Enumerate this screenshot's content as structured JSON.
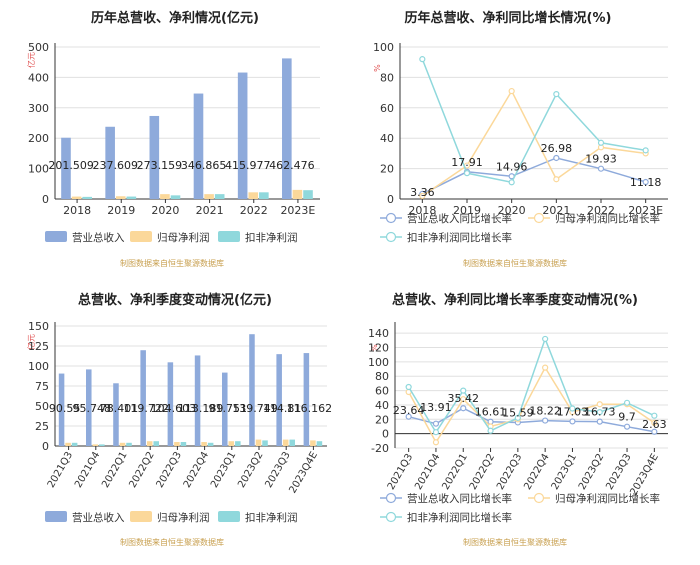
{
  "colors": {
    "revenue": "#8eaadb",
    "profit": "#fbd89a",
    "deducted": "#8fd8dc",
    "grid": "#e0e0e0",
    "axis": "#333333",
    "title": "#222222",
    "source": "#c8a050",
    "unit": "#e05050"
  },
  "source_note": "制图数据来自恒生聚源数据库",
  "chart_data": [
    {
      "type": "bar",
      "title": "历年总营收、净利情况(亿元)",
      "ylabel": "亿元",
      "ylim": [
        0,
        500
      ],
      "yticks": [
        "0",
        "100",
        "200",
        "300",
        "400",
        "500"
      ],
      "grid": true,
      "legend_position": "bottom",
      "categories": [
        "2018",
        "2019",
        "2020",
        "2021",
        "2022",
        "2023E"
      ],
      "series": [
        {
          "name": "营业总收入",
          "values": [
            201.509,
            237.609,
            273.159,
            346.865,
            415.977,
            462.476
          ]
        },
        {
          "name": "归母净利润",
          "values": [
            8,
            9,
            16,
            16,
            22,
            30
          ]
        },
        {
          "name": "扣非净利润",
          "values": [
            7,
            8,
            12,
            16,
            22,
            29
          ]
        }
      ],
      "data_labels": [
        "201.509",
        "237.609",
        "273.159",
        "346.865",
        "415.977",
        "462.476"
      ]
    },
    {
      "type": "line",
      "title": "历年总营收、净利同比增长情况(%)",
      "ylabel": "%",
      "ylim": [
        0,
        100
      ],
      "yticks": [
        "0",
        "20",
        "40",
        "60",
        "80",
        "100"
      ],
      "grid": true,
      "legend_position": "bottom",
      "categories": [
        "2018",
        "2019",
        "2020",
        "2021",
        "2022",
        "2023E"
      ],
      "series": [
        {
          "name": "营业总收入同比增长率",
          "values": [
            3.36,
            17.91,
            14.96,
            26.98,
            19.93,
            11.18
          ]
        },
        {
          "name": "归母净利润同比增长率",
          "values": [
            2,
            22,
            71,
            13,
            34,
            30
          ]
        },
        {
          "name": "扣非净利润同比增长率",
          "values": [
            92,
            17,
            11,
            69,
            37,
            32
          ]
        }
      ],
      "data_labels": [
        "3.36",
        "17.91",
        "14.96",
        "26.98",
        "19.93",
        "11.18"
      ]
    },
    {
      "type": "bar",
      "title": "总营收、净利季度变动情况(亿元)",
      "ylabel": "亿元",
      "ylim": [
        0,
        150
      ],
      "yticks": [
        "0",
        "25",
        "50",
        "75",
        "100",
        "125",
        "150"
      ],
      "grid": true,
      "legend_position": "bottom",
      "categories": [
        "2021Q3",
        "2021Q4",
        "2022Q1",
        "2022Q2",
        "2022Q3",
        "2022Q4",
        "2023Q1",
        "2023Q2",
        "2023Q3",
        "2023Q4E"
      ],
      "series": [
        {
          "name": "营业总收入",
          "values": [
            90.55,
            95.748,
            78.401,
            119.722,
            104.603,
            113.189,
            91.751,
            139.749,
            114.81,
            116.162
          ]
        },
        {
          "name": "归母净利润",
          "values": [
            4,
            2,
            4,
            6,
            5,
            5,
            6,
            8,
            8,
            7
          ]
        },
        {
          "name": "扣非净利润",
          "values": [
            4,
            2,
            4,
            6,
            5,
            4,
            6,
            7,
            8,
            6
          ]
        }
      ],
      "data_labels": [
        "90.55",
        "95.748",
        "78.401",
        "119.722",
        "104.603",
        "113.189",
        "91.751",
        "139.749",
        "114.81",
        "116.162"
      ]
    },
    {
      "type": "line",
      "title": "总营收、净利同比增长率季度变动情况(%)",
      "ylabel": "%",
      "ylim": [
        -20,
        150
      ],
      "yticks": [
        "-20",
        "0",
        "20",
        "40",
        "60",
        "80",
        "100",
        "120",
        "140"
      ],
      "grid": true,
      "legend_position": "bottom",
      "categories": [
        "2021Q3",
        "2021Q4",
        "2022Q1",
        "2022Q2",
        "2022Q3",
        "2022Q4",
        "2023Q1",
        "2023Q2",
        "2023Q3",
        "2023Q4E"
      ],
      "series": [
        {
          "name": "营业总收入同比增长率",
          "values": [
            23.64,
            13.91,
            35.42,
            16.61,
            15.59,
            18.22,
            17.03,
            16.73,
            9.7,
            2.63
          ]
        },
        {
          "name": "归母净利润同比增长率",
          "values": [
            58,
            -12,
            48,
            10,
            20,
            92,
            30,
            41,
            41,
            15
          ]
        },
        {
          "name": "扣非净利润同比增长率",
          "values": [
            65,
            2,
            60,
            4,
            22,
            132,
            35,
            30,
            43,
            25
          ]
        }
      ],
      "data_labels": [
        "23.64",
        "13.91",
        "35.42",
        "16.61",
        "15.59",
        "18.22",
        "17.03",
        "16.73",
        "9.7",
        "2.63"
      ]
    }
  ]
}
